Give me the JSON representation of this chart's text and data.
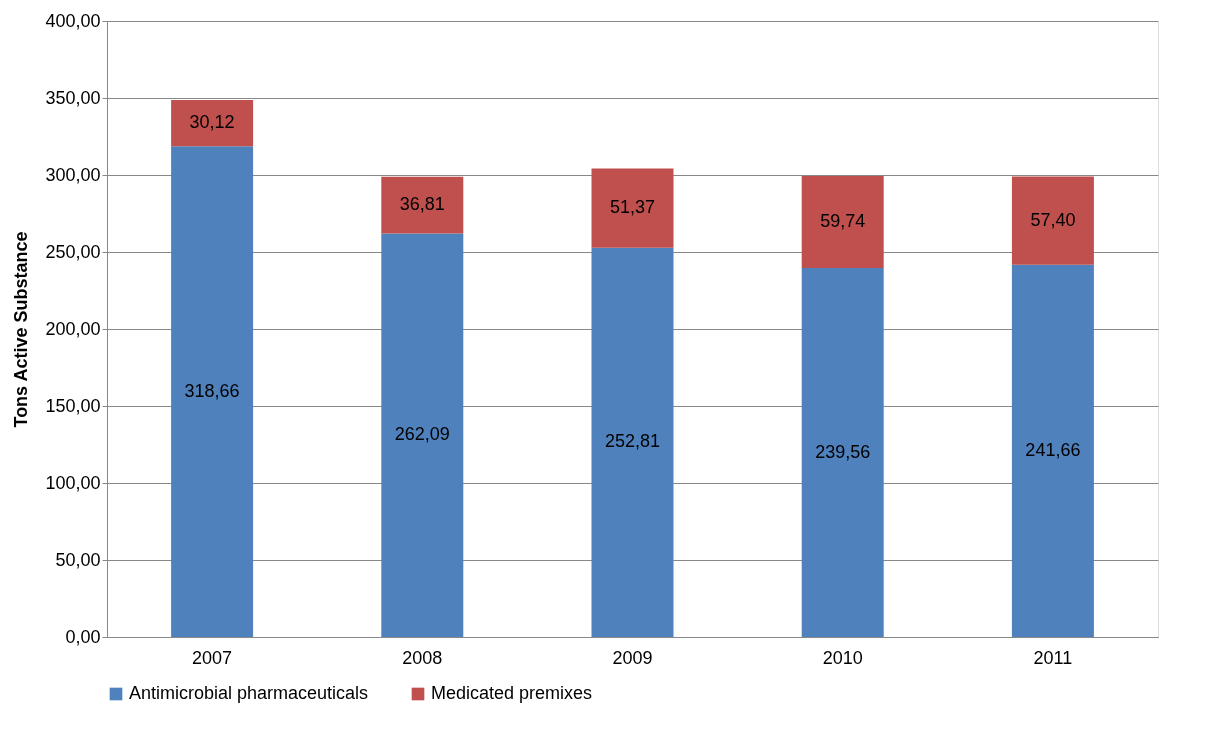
{
  "chart_data": {
    "type": "bar",
    "stacked": true,
    "ylabel": "Tons Active Substance",
    "categories": [
      "2007",
      "2008",
      "2009",
      "2010",
      "2011"
    ],
    "series": [
      {
        "name": "Antimicrobial pharmaceuticals",
        "color": "#4f81bd",
        "values": [
          318.66,
          262.09,
          252.81,
          239.56,
          241.66
        ],
        "value_labels": [
          "318,66",
          "262,09",
          "252,81",
          "239,56",
          "241,66"
        ]
      },
      {
        "name": "Medicated premixes",
        "color": "#c0504d",
        "values": [
          30.12,
          36.81,
          51.37,
          59.74,
          57.4
        ],
        "value_labels": [
          "30,12",
          "36,81",
          "51,37",
          "59,74",
          "57,40"
        ]
      }
    ],
    "ylim": [
      0,
      400
    ],
    "yticks": [
      {
        "value": 0,
        "label": "0,00"
      },
      {
        "value": 50,
        "label": "50,00"
      },
      {
        "value": 100,
        "label": "100,00"
      },
      {
        "value": 150,
        "label": "150,00"
      },
      {
        "value": 200,
        "label": "200,00"
      },
      {
        "value": 250,
        "label": "250,00"
      },
      {
        "value": 300,
        "label": "300,00"
      },
      {
        "value": 350,
        "label": "350,00"
      },
      {
        "value": 400,
        "label": "400,00"
      }
    ],
    "grid": "y",
    "legend": "bottom"
  }
}
